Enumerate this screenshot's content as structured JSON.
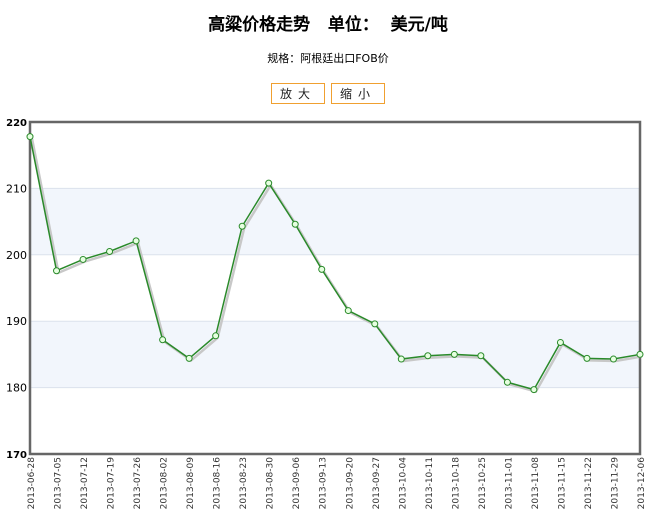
{
  "title": "高粱价格走势   单位：  美元/吨",
  "subtitle": "规格：阿根廷出口FOB价",
  "buttons": {
    "zoom_in": "放大",
    "zoom_out": "缩小"
  },
  "colors": {
    "line": "#2a8a2a",
    "marker_fill": "#e6ffe0",
    "band": "#f2f6fc",
    "grid": "#dbe2ec",
    "frame": "#666666"
  },
  "chart_data": {
    "type": "line",
    "title": "高粱价格走势   单位：  美元/吨",
    "xlabel": "",
    "ylabel": "",
    "ylim": [
      170,
      220
    ],
    "yticks": [
      170,
      180,
      190,
      200,
      210,
      220
    ],
    "grid": true,
    "x": [
      "2013-06-28",
      "2013-07-05",
      "2013-07-12",
      "2013-07-19",
      "2013-07-26",
      "2013-08-02",
      "2013-08-09",
      "2013-08-16",
      "2013-08-23",
      "2013-08-30",
      "2013-09-06",
      "2013-09-13",
      "2013-09-20",
      "2013-09-27",
      "2013-10-04",
      "2013-10-11",
      "2013-10-18",
      "2013-10-25",
      "2013-11-01",
      "2013-11-08",
      "2013-11-15",
      "2013-11-22",
      "2013-11-29",
      "2013-12-06"
    ],
    "values": [
      217.8,
      197.6,
      199.3,
      200.5,
      202.1,
      187.2,
      184.4,
      187.8,
      204.3,
      210.8,
      204.6,
      197.8,
      191.6,
      189.6,
      184.3,
      184.8,
      185.0,
      184.8,
      180.8,
      179.7,
      186.8,
      184.4,
      184.3,
      185.0
    ]
  }
}
